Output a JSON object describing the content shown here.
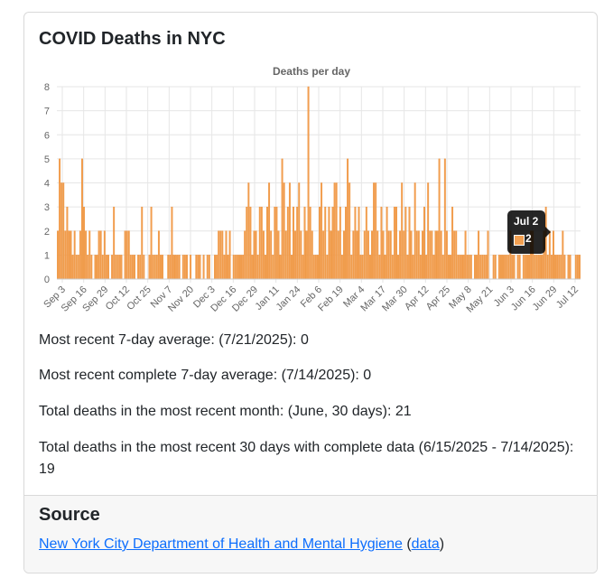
{
  "card": {
    "title": "COVID Deaths in NYC"
  },
  "chart_data": {
    "type": "bar",
    "title": "Deaths per day",
    "xlabel": "",
    "ylabel": "",
    "ylim": [
      0,
      8
    ],
    "y_ticks": [
      "0",
      "1",
      "2",
      "3",
      "4",
      "5",
      "6",
      "7",
      "8"
    ],
    "x_tick_labels": [
      "Sep 3",
      "Sep 16",
      "Sep 29",
      "Oct 12",
      "Oct 25",
      "Nov 7",
      "Nov 20",
      "Dec 3",
      "Dec 16",
      "Dec 29",
      "Jan 11",
      "Jan 24",
      "Feb 6",
      "Feb 19",
      "Mar 4",
      "Mar 17",
      "Mar 30",
      "Apr 12",
      "Apr 25",
      "May 8",
      "May 21",
      "Jun 3",
      "Jun 16",
      "Jun 29",
      "Jul 12"
    ],
    "grid": true,
    "legend": "none",
    "bar_color": "#f2a052",
    "bar_border_color": "#ed8a2e",
    "values": [
      2,
      5,
      4,
      4,
      2,
      3,
      2,
      2,
      1,
      2,
      1,
      1,
      2,
      5,
      3,
      2,
      1,
      2,
      1,
      0,
      1,
      1,
      2,
      2,
      1,
      2,
      1,
      1,
      0,
      1,
      3,
      1,
      1,
      1,
      1,
      0,
      2,
      2,
      2,
      1,
      1,
      1,
      0,
      1,
      1,
      3,
      1,
      0,
      0,
      1,
      3,
      1,
      1,
      1,
      2,
      1,
      1,
      0,
      0,
      1,
      1,
      3,
      1,
      1,
      1,
      1,
      0,
      1,
      1,
      1,
      0,
      1,
      0,
      0,
      1,
      1,
      1,
      0,
      1,
      0,
      1,
      1,
      0,
      0,
      1,
      1,
      2,
      2,
      2,
      1,
      2,
      1,
      2,
      0,
      1,
      1,
      1,
      1,
      1,
      1,
      2,
      3,
      4,
      3,
      1,
      2,
      2,
      1,
      3,
      3,
      2,
      1,
      3,
      4,
      2,
      1,
      3,
      3,
      2,
      1,
      5,
      4,
      2,
      3,
      4,
      1,
      3,
      2,
      3,
      4,
      2,
      1,
      3,
      2,
      8,
      3,
      2,
      1,
      1,
      1,
      3,
      4,
      2,
      3,
      1,
      3,
      2,
      3,
      4,
      4,
      2,
      3,
      1,
      2,
      3,
      5,
      4,
      1,
      2,
      3,
      2,
      3,
      1,
      1,
      2,
      3,
      2,
      1,
      2,
      4,
      4,
      2,
      1,
      3,
      2,
      1,
      3,
      2,
      2,
      1,
      3,
      3,
      1,
      2,
      4,
      2,
      3,
      1,
      3,
      2,
      1,
      4,
      2,
      2,
      1,
      2,
      3,
      1,
      4,
      2,
      2,
      1,
      2,
      2,
      5,
      2,
      1,
      5,
      2,
      1,
      1,
      3,
      2,
      2,
      1,
      1,
      1,
      1,
      2,
      1,
      1,
      1,
      0,
      1,
      1,
      2,
      1,
      1,
      1,
      1,
      2,
      0,
      0,
      1,
      1,
      0,
      1,
      1,
      1,
      1,
      1,
      1,
      2,
      1,
      1,
      0,
      1,
      1,
      0,
      1,
      1,
      1,
      1,
      2,
      2,
      1,
      1,
      1,
      1,
      1,
      2,
      3,
      1,
      2,
      1,
      2,
      1,
      1,
      1,
      1,
      2,
      1,
      0,
      1,
      1,
      0,
      0,
      1,
      1,
      1
    ]
  },
  "tooltip": {
    "title": "Jul 2",
    "value": "2",
    "swatch_color": "#f2a052"
  },
  "stats": {
    "line1": "Most recent 7-day average: (7/21/2025): 0",
    "line2": "Most recent complete 7-day average: (7/14/2025): 0",
    "line3": "Total deaths in the most recent month: (June, 30 days): 21",
    "line4": "Total deaths in the most recent 30 days with complete data (6/15/2025 - 7/14/2025): 19"
  },
  "source": {
    "heading": "Source",
    "link_text": "New York City Department of Health and Mental Hygiene",
    "paren_open": " (",
    "data_link_text": "data",
    "paren_close": ")"
  }
}
